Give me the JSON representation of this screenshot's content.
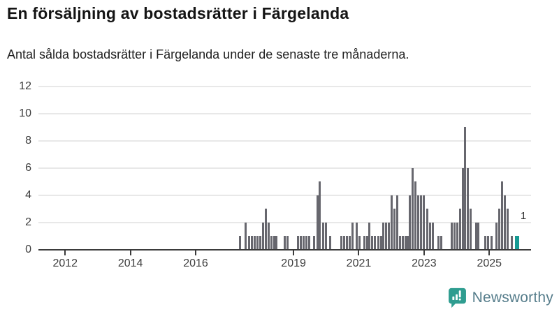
{
  "header": {
    "title": "En försäljning av bostadsrätter i Färgelanda",
    "subtitle": "Antal sålda bostadsrätter i Färgelanda under de senaste tre månaderna."
  },
  "chart_data": {
    "type": "bar",
    "title": "En försäljning av bostadsrätter i Färgelanda",
    "subtitle": "Antal sålda bostadsrätter i Färgelanda under de senaste tre månaderna.",
    "xlabel": "",
    "ylabel": "",
    "grid": true,
    "legend": "none",
    "bar_color": "#67676e",
    "highlight_color": "#169a93",
    "x_axis": {
      "min": 2011.18,
      "max": 2026.28,
      "ticks": [
        2012,
        2014,
        2016,
        2019,
        2021,
        2023,
        2025
      ]
    },
    "y_axis": {
      "min": 0,
      "max": 12.41,
      "ticks": [
        0,
        2,
        4,
        6,
        8,
        10,
        12
      ]
    },
    "points": [
      [
        2017.36,
        1
      ],
      [
        2017.53,
        2
      ],
      [
        2017.64,
        1
      ],
      [
        2017.72,
        1
      ],
      [
        2017.81,
        1
      ],
      [
        2017.9,
        1
      ],
      [
        2017.98,
        1
      ],
      [
        2018.07,
        2
      ],
      [
        2018.15,
        3
      ],
      [
        2018.24,
        2
      ],
      [
        2018.32,
        1
      ],
      [
        2018.4,
        1
      ],
      [
        2018.48,
        1
      ],
      [
        2018.73,
        1
      ],
      [
        2018.82,
        1
      ],
      [
        2019.14,
        1
      ],
      [
        2019.22,
        1
      ],
      [
        2019.31,
        1
      ],
      [
        2019.39,
        1
      ],
      [
        2019.48,
        1
      ],
      [
        2019.63,
        1
      ],
      [
        2019.73,
        4
      ],
      [
        2019.81,
        5
      ],
      [
        2019.91,
        2
      ],
      [
        2019.99,
        2
      ],
      [
        2020.12,
        1
      ],
      [
        2020.47,
        1
      ],
      [
        2020.56,
        1
      ],
      [
        2020.64,
        1
      ],
      [
        2020.73,
        1
      ],
      [
        2020.81,
        2
      ],
      [
        2020.94,
        2
      ],
      [
        2021.02,
        1
      ],
      [
        2021.17,
        1
      ],
      [
        2021.26,
        1
      ],
      [
        2021.33,
        2
      ],
      [
        2021.41,
        1
      ],
      [
        2021.49,
        1
      ],
      [
        2021.6,
        1
      ],
      [
        2021.68,
        1
      ],
      [
        2021.76,
        2
      ],
      [
        2021.84,
        2
      ],
      [
        2021.93,
        2
      ],
      [
        2022.01,
        4
      ],
      [
        2022.1,
        3
      ],
      [
        2022.18,
        4
      ],
      [
        2022.27,
        1
      ],
      [
        2022.35,
        1
      ],
      [
        2022.43,
        1
      ],
      [
        2022.51,
        1
      ],
      [
        2022.57,
        4
      ],
      [
        2022.65,
        6
      ],
      [
        2022.74,
        5
      ],
      [
        2022.82,
        4
      ],
      [
        2022.91,
        4
      ],
      [
        2022.99,
        4
      ],
      [
        2023.1,
        3
      ],
      [
        2023.18,
        2
      ],
      [
        2023.27,
        2
      ],
      [
        2023.44,
        1
      ],
      [
        2023.52,
        1
      ],
      [
        2023.85,
        2
      ],
      [
        2023.93,
        2
      ],
      [
        2024.02,
        2
      ],
      [
        2024.1,
        3
      ],
      [
        2024.19,
        6
      ],
      [
        2024.26,
        9
      ],
      [
        2024.35,
        6
      ],
      [
        2024.43,
        3
      ],
      [
        2024.59,
        2
      ],
      [
        2024.67,
        2
      ],
      [
        2024.87,
        1
      ],
      [
        2024.96,
        1
      ],
      [
        2025.07,
        1
      ],
      [
        2025.22,
        2
      ],
      [
        2025.3,
        3
      ],
      [
        2025.39,
        5
      ],
      [
        2025.47,
        4
      ],
      [
        2025.56,
        3
      ],
      [
        2025.7,
        1
      ]
    ],
    "latest": {
      "x": 2025.85,
      "value": 1,
      "label": "1"
    }
  },
  "footer": {
    "brand": "Newsworthy",
    "brand_text_color": "#567d8b",
    "logo_color": "#2f9d90",
    "logo_icon": "bar-chart-exclamation-bubble"
  }
}
